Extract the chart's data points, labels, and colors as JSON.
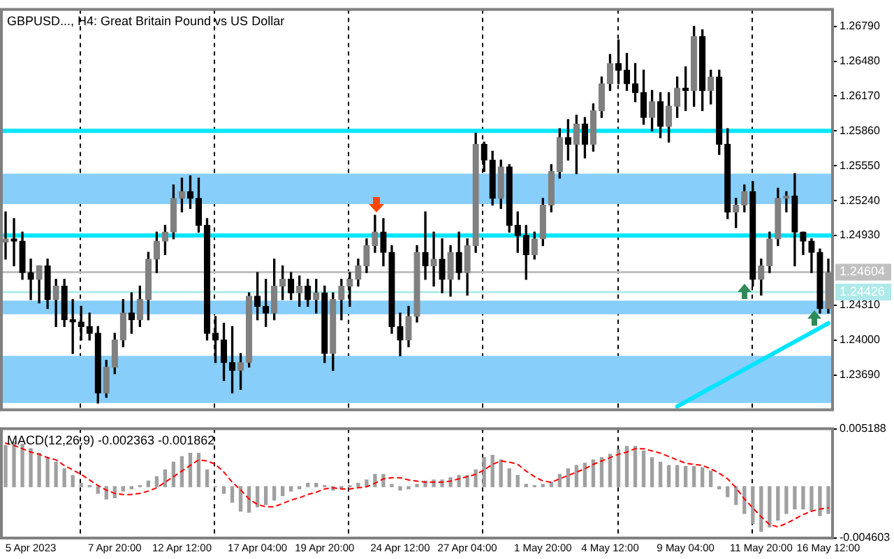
{
  "chart_data": [
    {
      "type": "candlestick",
      "title": "GBPUSD..., H4: Great Britain Pound vs US Dollar",
      "categories": [
        null,
        null,
        null,
        null,
        null,
        null,
        null,
        null,
        null,
        null,
        null,
        null,
        null,
        null,
        null,
        null,
        null,
        null,
        null,
        null,
        null,
        null,
        null,
        null,
        null,
        null,
        null,
        null,
        null,
        null,
        null,
        null,
        null,
        null,
        null,
        null,
        null,
        null,
        null,
        null,
        null,
        null,
        null,
        null,
        null,
        null,
        null,
        null,
        null,
        null,
        null,
        null,
        null,
        null,
        null,
        null,
        null,
        null,
        null,
        null,
        null,
        null,
        null,
        null,
        null,
        null,
        null,
        null,
        null,
        null,
        null,
        null,
        null,
        null,
        null,
        null,
        null,
        null,
        null,
        null,
        null,
        null,
        null,
        null,
        null,
        null,
        null,
        null,
        null,
        null,
        null,
        null,
        null,
        null,
        null,
        null,
        null,
        null,
        null
      ],
      "ohlc": [
        [
          1.2487,
          1.2514,
          1.2472,
          1.249
        ],
        [
          1.249,
          1.2508,
          1.2466,
          1.2488
        ],
        [
          1.2488,
          1.2496,
          1.2454,
          1.246
        ],
        [
          1.246,
          1.2472,
          1.2436,
          1.2454
        ],
        [
          1.2454,
          1.2466,
          1.2433,
          1.2466
        ],
        [
          1.2466,
          1.2472,
          1.2428,
          1.2436
        ],
        [
          1.2436,
          1.2454,
          1.2412,
          1.2448
        ],
        [
          1.2448,
          1.2454,
          1.2412,
          1.2418
        ],
        [
          1.2418,
          1.2436,
          1.2388,
          1.2416
        ],
        [
          1.2416,
          1.243,
          1.24,
          1.2412
        ],
        [
          1.2412,
          1.2424,
          1.24,
          1.2406
        ],
        [
          1.2406,
          1.2412,
          1.2344,
          1.2353
        ],
        [
          1.2353,
          1.2382,
          1.2349,
          1.2376
        ],
        [
          1.2376,
          1.2406,
          1.237,
          1.24
        ],
        [
          1.24,
          1.2436,
          1.2394,
          1.2424
        ],
        [
          1.2424,
          1.2442,
          1.2406,
          1.2418
        ],
        [
          1.2418,
          1.2448,
          1.2412,
          1.2436
        ],
        [
          1.2436,
          1.2478,
          1.2418,
          1.2472
        ],
        [
          1.2472,
          1.2496,
          1.246,
          1.2488
        ],
        [
          1.2488,
          1.2502,
          1.2476,
          1.2496
        ],
        [
          1.2496,
          1.2538,
          1.249,
          1.2526
        ],
        [
          1.2526,
          1.2544,
          1.2514,
          1.2532
        ],
        [
          1.2532,
          1.2546,
          1.2517,
          1.2526
        ],
        [
          1.2526,
          1.2544,
          1.2496,
          1.2502
        ],
        [
          1.2502,
          1.2508,
          1.24,
          1.2406
        ],
        [
          1.2406,
          1.2421,
          1.238,
          1.24
        ],
        [
          1.24,
          1.2415,
          1.2364,
          1.238
        ],
        [
          1.238,
          1.2412,
          1.2353,
          1.2373
        ],
        [
          1.2373,
          1.2388,
          1.2356,
          1.238
        ],
        [
          1.238,
          1.2442,
          1.2376,
          1.2439
        ],
        [
          1.2439,
          1.246,
          1.2418,
          1.243
        ],
        [
          1.243,
          1.2454,
          1.2412,
          1.2424
        ],
        [
          1.2424,
          1.2472,
          1.2418,
          1.2448
        ],
        [
          1.2448,
          1.2466,
          1.2436,
          1.2454
        ],
        [
          1.2454,
          1.246,
          1.2436,
          1.2442
        ],
        [
          1.2442,
          1.2457,
          1.243,
          1.2448
        ],
        [
          1.2448,
          1.2454,
          1.243,
          1.2436
        ],
        [
          1.2436,
          1.2454,
          1.2424,
          1.2442
        ],
        [
          1.2442,
          1.2448,
          1.238,
          1.2388
        ],
        [
          1.2388,
          1.2442,
          1.2373,
          1.2436
        ],
        [
          1.2436,
          1.2454,
          1.2418,
          1.2448
        ],
        [
          1.2448,
          1.246,
          1.243,
          1.2454
        ],
        [
          1.2454,
          1.2472,
          1.2448,
          1.2466
        ],
        [
          1.2466,
          1.249,
          1.246,
          1.2484
        ],
        [
          1.2484,
          1.2511,
          1.2478,
          1.2496
        ],
        [
          1.2496,
          1.2508,
          1.2466,
          1.2478
        ],
        [
          1.2478,
          1.2484,
          1.2406,
          1.2412
        ],
        [
          1.2412,
          1.2424,
          1.2386,
          1.24
        ],
        [
          1.24,
          1.243,
          1.2394,
          1.2421
        ],
        [
          1.2421,
          1.2484,
          1.2416,
          1.2478
        ],
        [
          1.2478,
          1.2514,
          1.2454,
          1.2466
        ],
        [
          1.2466,
          1.2496,
          1.2448,
          1.2472
        ],
        [
          1.2472,
          1.249,
          1.2442,
          1.2454
        ],
        [
          1.2454,
          1.2484,
          1.2439,
          1.2478
        ],
        [
          1.2478,
          1.2496,
          1.2454,
          1.246
        ],
        [
          1.246,
          1.249,
          1.244,
          1.2484
        ],
        [
          1.2484,
          1.2584,
          1.2478,
          1.2574
        ],
        [
          1.2574,
          1.2576,
          1.255,
          1.256
        ],
        [
          1.256,
          1.2568,
          1.252,
          1.2526
        ],
        [
          1.2526,
          1.256,
          1.2517,
          1.2554
        ],
        [
          1.2554,
          1.2556,
          1.2496,
          1.2502
        ],
        [
          1.2502,
          1.2514,
          1.2478,
          1.2493
        ],
        [
          1.2493,
          1.2502,
          1.2454,
          1.2476
        ],
        [
          1.2476,
          1.2496,
          1.2472,
          1.249
        ],
        [
          1.249,
          1.2526,
          1.2484,
          1.252
        ],
        [
          1.252,
          1.2556,
          1.2514,
          1.255
        ],
        [
          1.255,
          1.2588,
          1.2544,
          1.258
        ],
        [
          1.258,
          1.2596,
          1.256,
          1.2574
        ],
        [
          1.2574,
          1.26,
          1.2548,
          1.2592
        ],
        [
          1.2592,
          1.2598,
          1.2562,
          1.2574
        ],
        [
          1.2574,
          1.261,
          1.2568,
          1.2604
        ],
        [
          1.2604,
          1.2634,
          1.2598,
          1.2628
        ],
        [
          1.2628,
          1.2654,
          1.2622,
          1.2646
        ],
        [
          1.2646,
          1.2667,
          1.2628,
          1.264
        ],
        [
          1.264,
          1.2655,
          1.2622,
          1.2628
        ],
        [
          1.2628,
          1.2646,
          1.2612,
          1.262
        ],
        [
          1.262,
          1.264,
          1.2592,
          1.2598
        ],
        [
          1.2598,
          1.2622,
          1.2586,
          1.2612
        ],
        [
          1.2612,
          1.262,
          1.258,
          1.259
        ],
        [
          1.259,
          1.262,
          1.2576,
          1.2608
        ],
        [
          1.2608,
          1.2634,
          1.2598,
          1.2624
        ],
        [
          1.2624,
          1.2643,
          1.2604,
          1.2622
        ],
        [
          1.2622,
          1.2679,
          1.2608,
          1.267
        ],
        [
          1.267,
          1.2676,
          1.2604,
          1.2622
        ],
        [
          1.2622,
          1.264,
          1.261,
          1.2634
        ],
        [
          1.2634,
          1.264,
          1.2565,
          1.2574
        ],
        [
          1.2574,
          1.2588,
          1.2508,
          1.2514
        ],
        [
          1.2514,
          1.2526,
          1.25,
          1.252
        ],
        [
          1.252,
          1.2538,
          1.2514,
          1.2532
        ],
        [
          1.2532,
          1.2541,
          1.2448,
          1.2454
        ],
        [
          1.2454,
          1.2472,
          1.244,
          1.2466
        ],
        [
          1.2466,
          1.2496,
          1.246,
          1.249
        ],
        [
          1.249,
          1.2535,
          1.2484,
          1.2526
        ],
        [
          1.2526,
          1.2532,
          1.2514,
          1.2528
        ],
        [
          1.2528,
          1.2548,
          1.2466,
          1.2496
        ],
        [
          1.2496,
          1.2496,
          1.2476,
          1.2488
        ],
        [
          1.2488,
          1.249,
          1.246,
          1.2478
        ],
        [
          1.2478,
          1.2481,
          1.2424,
          1.2428
        ],
        [
          1.2428,
          1.2472,
          1.2424,
          1.246
        ]
      ],
      "colors": [
        "#808080",
        "#000000",
        "#000000",
        "#000000",
        "#808080",
        "#000000",
        "#808080",
        "#000000",
        "#000000",
        "#000000",
        "#000000",
        "#000000",
        "#808080",
        "#808080",
        "#808080",
        "#000000",
        "#808080",
        "#808080",
        "#808080",
        "#808080",
        "#808080",
        "#808080",
        "#000000",
        "#000000",
        "#000000",
        "#000000",
        "#000000",
        "#000000",
        "#808080",
        "#808080",
        "#000000",
        "#000000",
        "#808080",
        "#808080",
        "#000000",
        "#808080",
        "#000000",
        "#808080",
        "#000000",
        "#808080",
        "#808080",
        "#808080",
        "#808080",
        "#808080",
        "#808080",
        "#000000",
        "#000000",
        "#000000",
        "#808080",
        "#808080",
        "#000000",
        "#808080",
        "#000000",
        "#808080",
        "#000000",
        "#808080",
        "#808080",
        "#000000",
        "#000000",
        "#808080",
        "#000000",
        "#000000",
        "#000000",
        "#808080",
        "#808080",
        "#808080",
        "#808080",
        "#000000",
        "#808080",
        "#000000",
        "#808080",
        "#808080",
        "#808080",
        "#000000",
        "#000000",
        "#000000",
        "#000000",
        "#808080",
        "#000000",
        "#808080",
        "#808080",
        "#000000",
        "#808080",
        "#000000",
        "#808080",
        "#000000",
        "#000000",
        "#808080",
        "#808080",
        "#000000",
        "#808080",
        "#808080",
        "#808080",
        "#808080",
        "#000000",
        "#000000",
        "#000000",
        "#000000",
        "#808080"
      ],
      "ylim": [
        1.2338,
        1.2694
      ],
      "yticks": [
        {
          "value": 1.2369,
          "label": "1.23690"
        },
        {
          "value": 1.24,
          "label": "1.24000"
        },
        {
          "value": 1.2431,
          "label": "1.24310"
        },
        {
          "value": 1.2493,
          "label": "1.24930"
        },
        {
          "value": 1.2524,
          "label": "1.25240"
        },
        {
          "value": 1.2555,
          "label": "1.25550"
        },
        {
          "value": 1.2586,
          "label": "1.25860"
        },
        {
          "value": 1.2617,
          "label": "1.26170"
        },
        {
          "value": 1.2648,
          "label": "1.26480"
        },
        {
          "value": 1.2679,
          "label": "1.26790"
        }
      ],
      "tick_labels": "y",
      "grid": "x",
      "bands": [
        {
          "axis": "y",
          "from": 1.2521,
          "to": 1.2548,
          "color": "#87cefa"
        },
        {
          "axis": "y",
          "from": 1.2344,
          "to": 1.2386,
          "color": "#87cefa"
        },
        {
          "axis": "y",
          "from": 1.2423,
          "to": 1.2435,
          "color": "#87cefa"
        }
      ],
      "ref_lines": [
        {
          "axis": "y",
          "value": 1.2586,
          "color": "#00e5ff",
          "line_style": "solid"
        },
        {
          "axis": "y",
          "value": 1.2493,
          "color": "#00e5ff",
          "line_style": "solid"
        },
        {
          "axis": "y",
          "value": 1.24604,
          "label": "1.24604",
          "color": "#c0c0c0",
          "line_style": "solid"
        },
        {
          "axis": "y",
          "value": 1.24426,
          "label": "1.24426",
          "color": "#aeeaea",
          "line_style": "solid"
        }
      ],
      "series": [
        {
          "type": "line",
          "color": "#00e5ff",
          "values": [
            null,
            null,
            null,
            null,
            null,
            null,
            null,
            null,
            null,
            null,
            null,
            null,
            null,
            null,
            null,
            null,
            null,
            null,
            null,
            null,
            null,
            null,
            null,
            null,
            null,
            null,
            null,
            null,
            null,
            null,
            null,
            null,
            null,
            null,
            null,
            null,
            null,
            null,
            null,
            null,
            null,
            null,
            null,
            null,
            null,
            null,
            null,
            null,
            null,
            null,
            null,
            null,
            null,
            null,
            null,
            null,
            null,
            null,
            null,
            null,
            null,
            null,
            null,
            null,
            null,
            null,
            null,
            null,
            null,
            null,
            null,
            null,
            null,
            null,
            null,
            null,
            null,
            null,
            null,
            null,
            1.2341,
            null,
            null,
            null,
            null,
            null,
            null,
            null,
            null,
            null,
            null,
            null,
            null,
            null,
            null,
            null,
            null,
            null,
            1.2415
          ]
        }
      ]
    },
    {
      "type": "bar",
      "title": "MACD(12,26,9) -0.002363 -0.001862",
      "categories": [
        null,
        null,
        null,
        "5 Apr 2023",
        null,
        null,
        null,
        null,
        null,
        null,
        null,
        null,
        null,
        "7 Apr 20:00",
        null,
        null,
        null,
        null,
        null,
        null,
        null,
        "12 Apr 12:00",
        null,
        null,
        null,
        null,
        null,
        null,
        null,
        null,
        "17 Apr 04:00",
        null,
        null,
        null,
        null,
        null,
        null,
        null,
        "19 Apr 20:00",
        null,
        null,
        null,
        null,
        null,
        null,
        null,
        null,
        "24 Apr 12:00",
        null,
        null,
        null,
        null,
        null,
        null,
        null,
        "27 Apr 04:00",
        null,
        null,
        null,
        null,
        null,
        null,
        null,
        null,
        "1 May 20:00",
        null,
        null,
        null,
        null,
        null,
        null,
        null,
        "4 May 12:00",
        null,
        null,
        null,
        null,
        null,
        null,
        null,
        null,
        "9 May 04:00",
        null,
        null,
        null,
        null,
        null,
        null,
        null,
        null,
        "11 May 20:00",
        null,
        null,
        null,
        null,
        null,
        null,
        null,
        "16 May 12:00"
      ],
      "ylim": [
        -0.004603,
        0.005188
      ],
      "yticks": [
        -0.004603,
        0.005188
      ],
      "grid": "x",
      "series": [
        {
          "type": "bar",
          "color": "#a0a0a0",
          "values": [
            0.0037,
            0.004,
            0.0038,
            0.0034,
            0.003,
            0.0026,
            0.0022,
            0.0016,
            0.001,
            0.0003,
            0.0001,
            -0.0006,
            -0.0011,
            -0.001,
            -0.0004,
            -0.0002,
            0.0001,
            0.0005,
            0.0009,
            0.0015,
            0.0022,
            0.0027,
            0.003,
            0.003,
            0.0015,
            0.0,
            -0.0006,
            -0.0014,
            -0.0022,
            -0.0023,
            -0.0018,
            -0.0016,
            -0.0012,
            -0.0008,
            -0.0004,
            -0.0002,
            0.0003,
            0.0003,
            0.0001,
            -0.0003,
            -0.0002,
            0.0001,
            0.0003,
            0.0006,
            0.0011,
            0.0011,
            0.0002,
            -0.0003,
            -0.0002,
            0.0002,
            0.0005,
            0.0006,
            0.0006,
            0.0008,
            0.001,
            0.001,
            0.0015,
            0.0026,
            0.0028,
            0.0024,
            0.0016,
            0.001,
            0.0002,
            0.0001,
            0.0002,
            0.0004,
            0.0011,
            0.0016,
            0.0019,
            0.0021,
            0.0024,
            0.0026,
            0.0029,
            0.0033,
            0.0036,
            0.0036,
            0.0032,
            0.0026,
            0.0022,
            0.0019,
            0.0019,
            0.0018,
            0.0018,
            0.0017,
            0.0014,
            -0.0002,
            -0.0009,
            -0.0016,
            -0.0024,
            -0.0033,
            -0.004,
            -0.0036,
            -0.003,
            -0.0024,
            -0.002,
            -0.002,
            -0.0022,
            -0.0026,
            -0.0024
          ]
        },
        {
          "type": "line",
          "color": "#ff0000",
          "line_style": "dashed",
          "values": [
            0.0039,
            0.0037,
            0.0034,
            0.0031,
            0.0029,
            0.0026,
            0.0024,
            0.0019,
            0.0015,
            0.0011,
            0.0006,
            0.0001,
            -0.0003,
            -0.0006,
            -0.0007,
            -0.0007,
            -0.0006,
            -0.0004,
            -0.0001,
            0.0004,
            0.0009,
            0.0014,
            0.0019,
            0.0024,
            0.0023,
            0.002,
            0.0013,
            0.0004,
            -0.0003,
            -0.0011,
            -0.0016,
            -0.0018,
            -0.0018,
            -0.0015,
            -0.0012,
            -0.001,
            -0.0007,
            -0.0005,
            -0.0002,
            -0.0001,
            -0.0002,
            -0.0002,
            -0.0001,
            0.0,
            0.0003,
            0.0007,
            0.0008,
            0.0008,
            0.0006,
            0.0005,
            0.0004,
            0.0004,
            0.0004,
            0.0005,
            0.0007,
            0.0009,
            0.0011,
            0.0015,
            0.002,
            0.0023,
            0.0022,
            0.002,
            0.0014,
            0.0009,
            0.0005,
            0.0004,
            0.0007,
            0.001,
            0.0013,
            0.0016,
            0.002,
            0.0023,
            0.0026,
            0.0029,
            0.0031,
            0.0034,
            0.0034,
            0.0032,
            0.003,
            0.0027,
            0.0024,
            0.0021,
            0.002,
            0.0019,
            0.0016,
            0.0012,
            0.0007,
            -0.0001,
            -0.0011,
            -0.0019,
            -0.0027,
            -0.0034,
            -0.0036,
            -0.0033,
            -0.0029,
            -0.0025,
            -0.0022,
            -0.002,
            -0.0019
          ]
        }
      ]
    }
  ]
}
